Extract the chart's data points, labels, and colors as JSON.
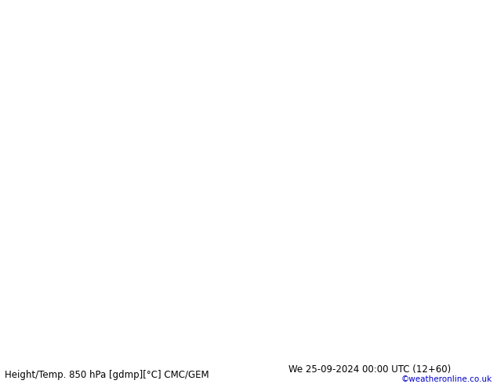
{
  "title_left": "Height/Temp. 850 hPa [gdmp][°C] CMC/GEM",
  "title_right": "We 25-09-2024 00:00 UTC (12+60)",
  "watermark": "©weatheronline.co.uk",
  "figsize": [
    6.34,
    4.9
  ],
  "dpi": 100,
  "bg_color": "#ffffff",
  "sea_color": "#d0d8d0",
  "land_color": "#b8e890",
  "land_color2": "#90d060",
  "gray_color": "#a0a0a0",
  "footer_fontsize": 8.5,
  "watermark_color": "#0000cc",
  "black": "#000000",
  "cyan": "#00b8b8",
  "lime": "#80c000",
  "orange": "#e07800",
  "red": "#e00000",
  "magenta": "#c000a0",
  "map_extent": [
    -35,
    45,
    27,
    72
  ],
  "contour_lw": 1.8,
  "thick_lw": 2.8
}
